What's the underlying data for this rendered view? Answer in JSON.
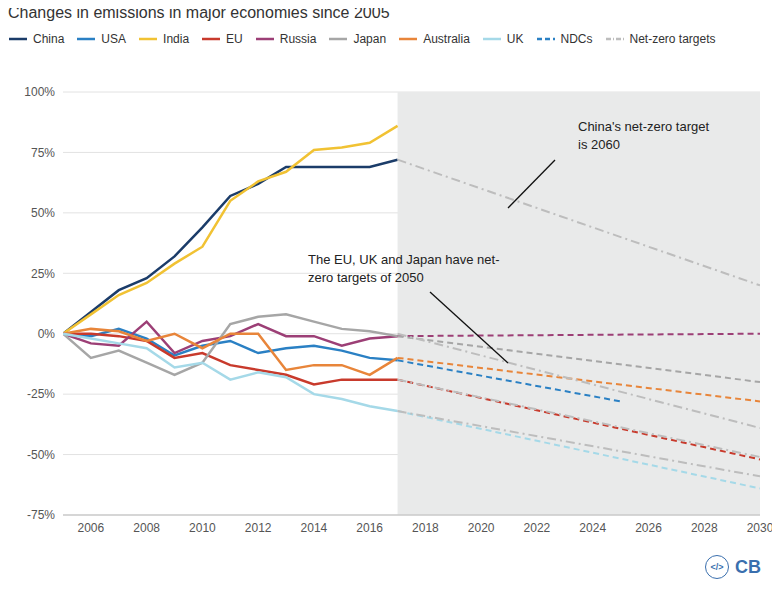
{
  "chart_data": {
    "type": "line",
    "title": "Changes in emissions in major economies since 2005",
    "legend": "top",
    "grid": true,
    "xlim": [
      2005,
      2030
    ],
    "xticks": [
      2006,
      2008,
      2010,
      2012,
      2014,
      2016,
      2018,
      2020,
      2022,
      2024,
      2026,
      2028,
      2030
    ],
    "ylim": [
      -75,
      100
    ],
    "yticks": [
      {
        "value": -75,
        "label": "-75%"
      },
      {
        "value": -50,
        "label": "-50%"
      },
      {
        "value": -25,
        "label": "-25%"
      },
      {
        "value": 0,
        "label": "0%"
      },
      {
        "value": 25,
        "label": "25%"
      },
      {
        "value": 50,
        "label": "50%"
      },
      {
        "value": 75,
        "label": "75%"
      },
      {
        "value": 100,
        "label": "100%"
      }
    ],
    "shaded_from": 2017,
    "annotations": [
      "China's net-zero target is 2060",
      "The EU, UK and Japan have net-zero targets of 2050"
    ],
    "logo_icon": "</>",
    "logo": "CB",
    "series": [
      {
        "name": "China",
        "color": "#1b3c69",
        "line_style": "solid",
        "x": [
          2005,
          2006,
          2007,
          2008,
          2009,
          2010,
          2011,
          2012,
          2013,
          2014,
          2015,
          2016,
          2017
        ],
        "values": [
          0,
          9,
          18,
          23,
          32,
          44,
          57,
          62,
          69,
          69,
          69,
          69,
          72
        ]
      },
      {
        "name": "USA",
        "color": "#2a80c4",
        "line_style": "solid",
        "x": [
          2005,
          2006,
          2007,
          2008,
          2009,
          2010,
          2011,
          2012,
          2013,
          2014,
          2015,
          2016,
          2017
        ],
        "values": [
          0,
          -1,
          2,
          -2,
          -9,
          -5,
          -3,
          -8,
          -6,
          -5,
          -7,
          -10,
          -11
        ]
      },
      {
        "name": "India",
        "color": "#f1c233",
        "line_style": "solid",
        "x": [
          2005,
          2006,
          2007,
          2008,
          2009,
          2010,
          2011,
          2012,
          2013,
          2014,
          2015,
          2016,
          2017
        ],
        "values": [
          0,
          8,
          16,
          21,
          29,
          36,
          55,
          63,
          67,
          76,
          77,
          79,
          86
        ]
      },
      {
        "name": "EU",
        "color": "#c83a2c",
        "line_style": "solid",
        "x": [
          2005,
          2006,
          2007,
          2008,
          2009,
          2010,
          2011,
          2012,
          2013,
          2014,
          2015,
          2016,
          2017
        ],
        "values": [
          0,
          0,
          -1,
          -3,
          -10,
          -8,
          -13,
          -15,
          -17,
          -21,
          -19,
          -19,
          -19
        ]
      },
      {
        "name": "Russia",
        "color": "#9c3f76",
        "line_style": "solid",
        "x": [
          2005,
          2006,
          2007,
          2008,
          2009,
          2010,
          2011,
          2012,
          2013,
          2014,
          2015,
          2016,
          2017
        ],
        "values": [
          0,
          -4,
          -5,
          5,
          -8,
          -3,
          -1,
          4,
          -1,
          -1,
          -5,
          -2,
          -1
        ]
      },
      {
        "name": "Japan",
        "color": "#a6a6a6",
        "line_style": "solid",
        "x": [
          2005,
          2006,
          2007,
          2008,
          2009,
          2010,
          2011,
          2012,
          2013,
          2014,
          2015,
          2016,
          2017
        ],
        "values": [
          0,
          -10,
          -7,
          -12,
          -17,
          -12,
          4,
          7,
          8,
          5,
          2,
          1,
          -1
        ]
      },
      {
        "name": "Australia",
        "color": "#e8853a",
        "line_style": "solid",
        "x": [
          2005,
          2006,
          2007,
          2008,
          2009,
          2010,
          2011,
          2012,
          2013,
          2014,
          2015,
          2016,
          2017
        ],
        "values": [
          0,
          2,
          1,
          -3,
          0,
          -6,
          0,
          0,
          -15,
          -13,
          -13,
          -17,
          -10
        ]
      },
      {
        "name": "UK",
        "color": "#a5d9e8",
        "line_style": "solid",
        "x": [
          2005,
          2006,
          2007,
          2008,
          2009,
          2010,
          2011,
          2012,
          2013,
          2014,
          2015,
          2016,
          2017
        ],
        "values": [
          0,
          -2,
          -4,
          -6,
          -14,
          -12,
          -19,
          -16,
          -18,
          -25,
          -27,
          -30,
          -32
        ]
      },
      {
        "name": "NDCs",
        "color": "#2a80c4",
        "line_style": "dashed",
        "x": [
          2017,
          2025
        ],
        "values": [
          -11,
          -28
        ]
      },
      {
        "name": "NDCs",
        "color": "#9c3f76",
        "line_style": "dashed",
        "x": [
          2017,
          2030
        ],
        "values": [
          -1,
          0
        ]
      },
      {
        "name": "NDCs",
        "color": "#a6a6a6",
        "line_style": "dashed",
        "x": [
          2017,
          2030
        ],
        "values": [
          -1,
          -20
        ]
      },
      {
        "name": "NDCs",
        "color": "#e8853a",
        "line_style": "dashed",
        "x": [
          2017,
          2030
        ],
        "values": [
          -10,
          -28
        ]
      },
      {
        "name": "NDCs",
        "color": "#c83a2c",
        "line_style": "dashed",
        "x": [
          2017,
          2030
        ],
        "values": [
          -19,
          -52
        ]
      },
      {
        "name": "NDCs",
        "color": "#a5d9e8",
        "line_style": "dashed",
        "x": [
          2017,
          2030
        ],
        "values": [
          -32,
          -64
        ]
      },
      {
        "name": "Net-zero targets",
        "color": "#bdbdbd",
        "line_style": "dashdot",
        "x": [
          2017,
          2030
        ],
        "values": [
          72,
          20
        ]
      },
      {
        "name": "Net-zero targets",
        "color": "#bdbdbd",
        "line_style": "dashdot",
        "x": [
          2017,
          2030
        ],
        "values": [
          0,
          -39
        ]
      },
      {
        "name": "Net-zero targets",
        "color": "#bdbdbd",
        "line_style": "dashdot",
        "x": [
          2017,
          2030
        ],
        "values": [
          -19,
          -51
        ]
      },
      {
        "name": "Net-zero targets",
        "color": "#bdbdbd",
        "line_style": "dashdot",
        "x": [
          2017,
          2030
        ],
        "values": [
          -32,
          -59
        ]
      }
    ]
  }
}
